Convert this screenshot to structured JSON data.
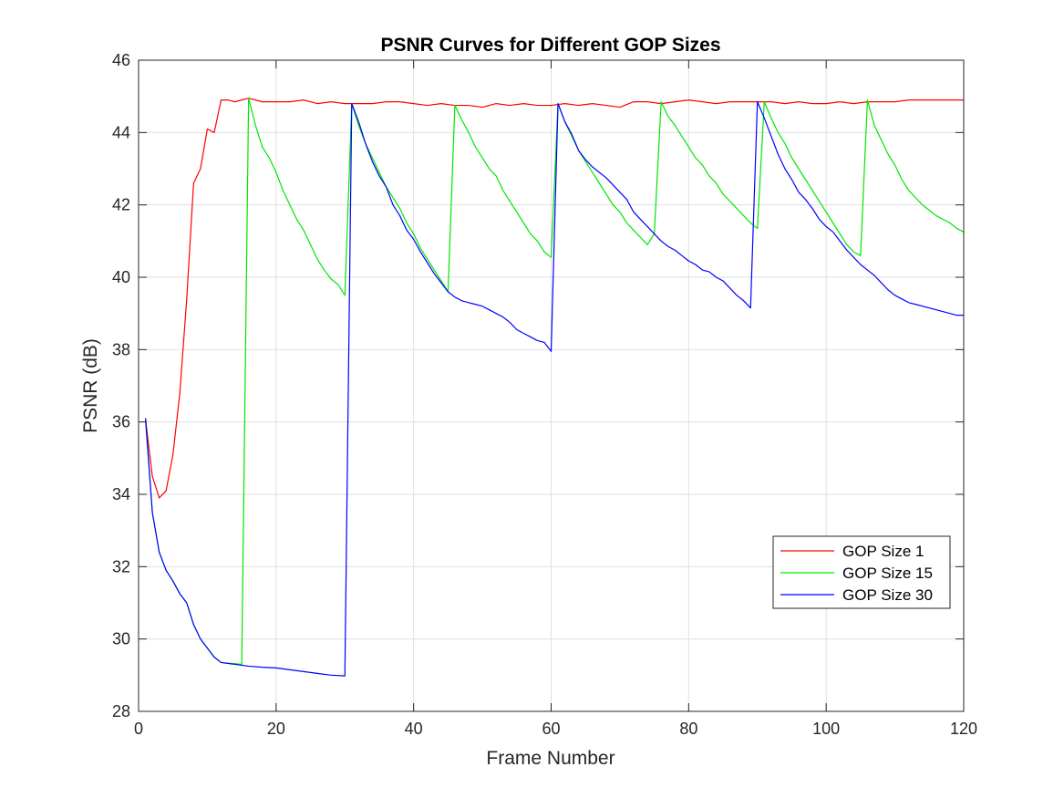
{
  "chart_data": {
    "type": "line",
    "title": "PSNR Curves for Different GOP Sizes",
    "xlabel": "Frame Number",
    "ylabel": "PSNR (dB)",
    "xlim": [
      0,
      120
    ],
    "ylim": [
      28,
      46
    ],
    "xticks": [
      0,
      20,
      40,
      60,
      80,
      100,
      120
    ],
    "yticks": [
      28,
      30,
      32,
      34,
      36,
      38,
      40,
      42,
      44,
      46
    ],
    "grid": true,
    "legend_position": "bottom-right",
    "series": [
      {
        "name": "GOP Size 1",
        "color": "#ff0000",
        "x": [
          1,
          2,
          3,
          4,
          5,
          6,
          7,
          8,
          9,
          10,
          11,
          12,
          13,
          14,
          15,
          16,
          17,
          18,
          19,
          20,
          22,
          24,
          26,
          28,
          30,
          32,
          34,
          36,
          38,
          40,
          42,
          44,
          46,
          48,
          50,
          52,
          54,
          56,
          58,
          60,
          62,
          64,
          66,
          68,
          70,
          72,
          74,
          76,
          78,
          80,
          82,
          84,
          86,
          88,
          90,
          92,
          94,
          96,
          98,
          100,
          102,
          104,
          106,
          108,
          110,
          112,
          114,
          116,
          118,
          120
        ],
        "y": [
          36.1,
          34.5,
          33.9,
          34.1,
          35.1,
          36.8,
          39.4,
          42.6,
          43.0,
          44.1,
          44.0,
          44.9,
          44.9,
          44.85,
          44.9,
          44.95,
          44.9,
          44.85,
          44.85,
          44.85,
          44.85,
          44.9,
          44.8,
          44.85,
          44.8,
          44.8,
          44.8,
          44.85,
          44.85,
          44.8,
          44.75,
          44.8,
          44.75,
          44.75,
          44.7,
          44.8,
          44.75,
          44.8,
          44.75,
          44.75,
          44.8,
          44.75,
          44.8,
          44.75,
          44.7,
          44.85,
          44.85,
          44.8,
          44.85,
          44.9,
          44.85,
          44.8,
          44.85,
          44.85,
          44.85,
          44.85,
          44.8,
          44.85,
          44.8,
          44.8,
          44.85,
          44.8,
          44.85,
          44.85,
          44.85,
          44.9,
          44.9,
          44.9,
          44.9,
          44.9
        ]
      },
      {
        "name": "GOP Size 15",
        "color": "#00e600",
        "x": [
          1,
          2,
          3,
          4,
          5,
          6,
          7,
          8,
          9,
          10,
          11,
          12,
          13,
          14,
          15,
          16,
          17,
          18,
          19,
          20,
          21,
          22,
          23,
          24,
          25,
          26,
          27,
          28,
          29,
          30,
          31,
          32,
          33,
          34,
          35,
          36,
          37,
          38,
          39,
          40,
          41,
          42,
          43,
          44,
          45,
          46,
          47,
          48,
          49,
          50,
          51,
          52,
          53,
          54,
          55,
          56,
          57,
          58,
          59,
          60,
          61,
          62,
          63,
          64,
          65,
          66,
          67,
          68,
          69,
          70,
          71,
          72,
          73,
          74,
          75,
          76,
          77,
          78,
          79,
          80,
          81,
          82,
          83,
          84,
          85,
          86,
          87,
          88,
          89,
          90,
          91,
          92,
          93,
          94,
          95,
          96,
          97,
          98,
          99,
          100,
          101,
          102,
          103,
          104,
          105,
          106,
          107,
          108,
          109,
          110,
          111,
          112,
          113,
          114,
          115,
          116,
          117,
          118,
          119,
          120
        ],
        "y": [
          36.1,
          33.5,
          32.4,
          31.9,
          31.6,
          31.25,
          31.0,
          30.4,
          30.0,
          29.75,
          29.5,
          29.35,
          29.33,
          29.32,
          29.3,
          44.95,
          44.2,
          43.6,
          43.3,
          42.9,
          42.4,
          42.0,
          41.6,
          41.3,
          40.9,
          40.5,
          40.2,
          39.95,
          39.8,
          39.5,
          44.8,
          44.2,
          43.7,
          43.3,
          42.9,
          42.5,
          42.2,
          41.9,
          41.5,
          41.2,
          40.8,
          40.5,
          40.2,
          39.9,
          39.6,
          44.75,
          44.35,
          44.0,
          43.6,
          43.3,
          43.0,
          42.8,
          42.4,
          42.1,
          41.8,
          41.5,
          41.2,
          41.0,
          40.7,
          40.55,
          44.8,
          44.3,
          43.9,
          43.5,
          43.2,
          42.9,
          42.6,
          42.3,
          42.0,
          41.8,
          41.5,
          41.3,
          41.1,
          40.9,
          41.2,
          44.85,
          44.45,
          44.2,
          43.9,
          43.6,
          43.3,
          43.1,
          42.8,
          42.6,
          42.3,
          42.1,
          41.9,
          41.7,
          41.5,
          41.35,
          44.85,
          44.4,
          44.0,
          43.7,
          43.3,
          43.0,
          42.7,
          42.4,
          42.1,
          41.8,
          41.5,
          41.2,
          40.9,
          40.7,
          40.6,
          44.9,
          44.2,
          43.8,
          43.4,
          43.1,
          42.7,
          42.4,
          42.2,
          42.0,
          41.85,
          41.7,
          41.6,
          41.5,
          41.35,
          41.25
        ]
      },
      {
        "name": "GOP Size 30",
        "color": "#0000ff",
        "x": [
          1,
          2,
          3,
          4,
          5,
          6,
          7,
          8,
          9,
          10,
          11,
          12,
          14,
          16,
          18,
          20,
          22,
          24,
          26,
          28,
          30,
          31,
          32,
          33,
          34,
          35,
          36,
          37,
          38,
          39,
          40,
          41,
          42,
          43,
          44,
          45,
          46,
          47,
          48,
          49,
          50,
          51,
          52,
          53,
          54,
          55,
          56,
          57,
          58,
          59,
          60,
          61,
          62,
          63,
          64,
          65,
          66,
          67,
          68,
          69,
          70,
          71,
          72,
          73,
          74,
          75,
          76,
          77,
          78,
          79,
          80,
          81,
          82,
          83,
          84,
          85,
          86,
          87,
          88,
          89,
          90,
          91,
          92,
          93,
          94,
          95,
          96,
          97,
          98,
          99,
          100,
          101,
          102,
          103,
          104,
          105,
          106,
          107,
          108,
          109,
          110,
          111,
          112,
          113,
          114,
          115,
          116,
          117,
          118,
          119,
          120
        ],
        "y": [
          36.1,
          33.5,
          32.4,
          31.9,
          31.6,
          31.25,
          31.0,
          30.4,
          30.0,
          29.75,
          29.5,
          29.35,
          29.3,
          29.25,
          29.22,
          29.2,
          29.15,
          29.1,
          29.05,
          29.0,
          28.98,
          44.8,
          44.3,
          43.7,
          43.2,
          42.8,
          42.5,
          42.0,
          41.7,
          41.3,
          41.05,
          40.7,
          40.4,
          40.1,
          39.85,
          39.6,
          39.45,
          39.35,
          39.3,
          39.25,
          39.2,
          39.1,
          39.0,
          38.9,
          38.75,
          38.55,
          38.45,
          38.35,
          38.25,
          38.2,
          37.95,
          44.8,
          44.3,
          43.95,
          43.5,
          43.25,
          43.05,
          42.9,
          42.75,
          42.55,
          42.35,
          42.15,
          41.8,
          41.6,
          41.4,
          41.2,
          41.0,
          40.85,
          40.75,
          40.6,
          40.45,
          40.35,
          40.2,
          40.15,
          40.0,
          39.9,
          39.7,
          39.5,
          39.35,
          39.15,
          44.85,
          44.4,
          43.9,
          43.4,
          43.0,
          42.7,
          42.35,
          42.15,
          41.9,
          41.6,
          41.4,
          41.25,
          41.0,
          40.75,
          40.55,
          40.35,
          40.2,
          40.05,
          39.85,
          39.65,
          39.5,
          39.4,
          39.3,
          39.25,
          39.2,
          39.15,
          39.1,
          39.05,
          39.0,
          38.95,
          38.95
        ]
      }
    ]
  }
}
